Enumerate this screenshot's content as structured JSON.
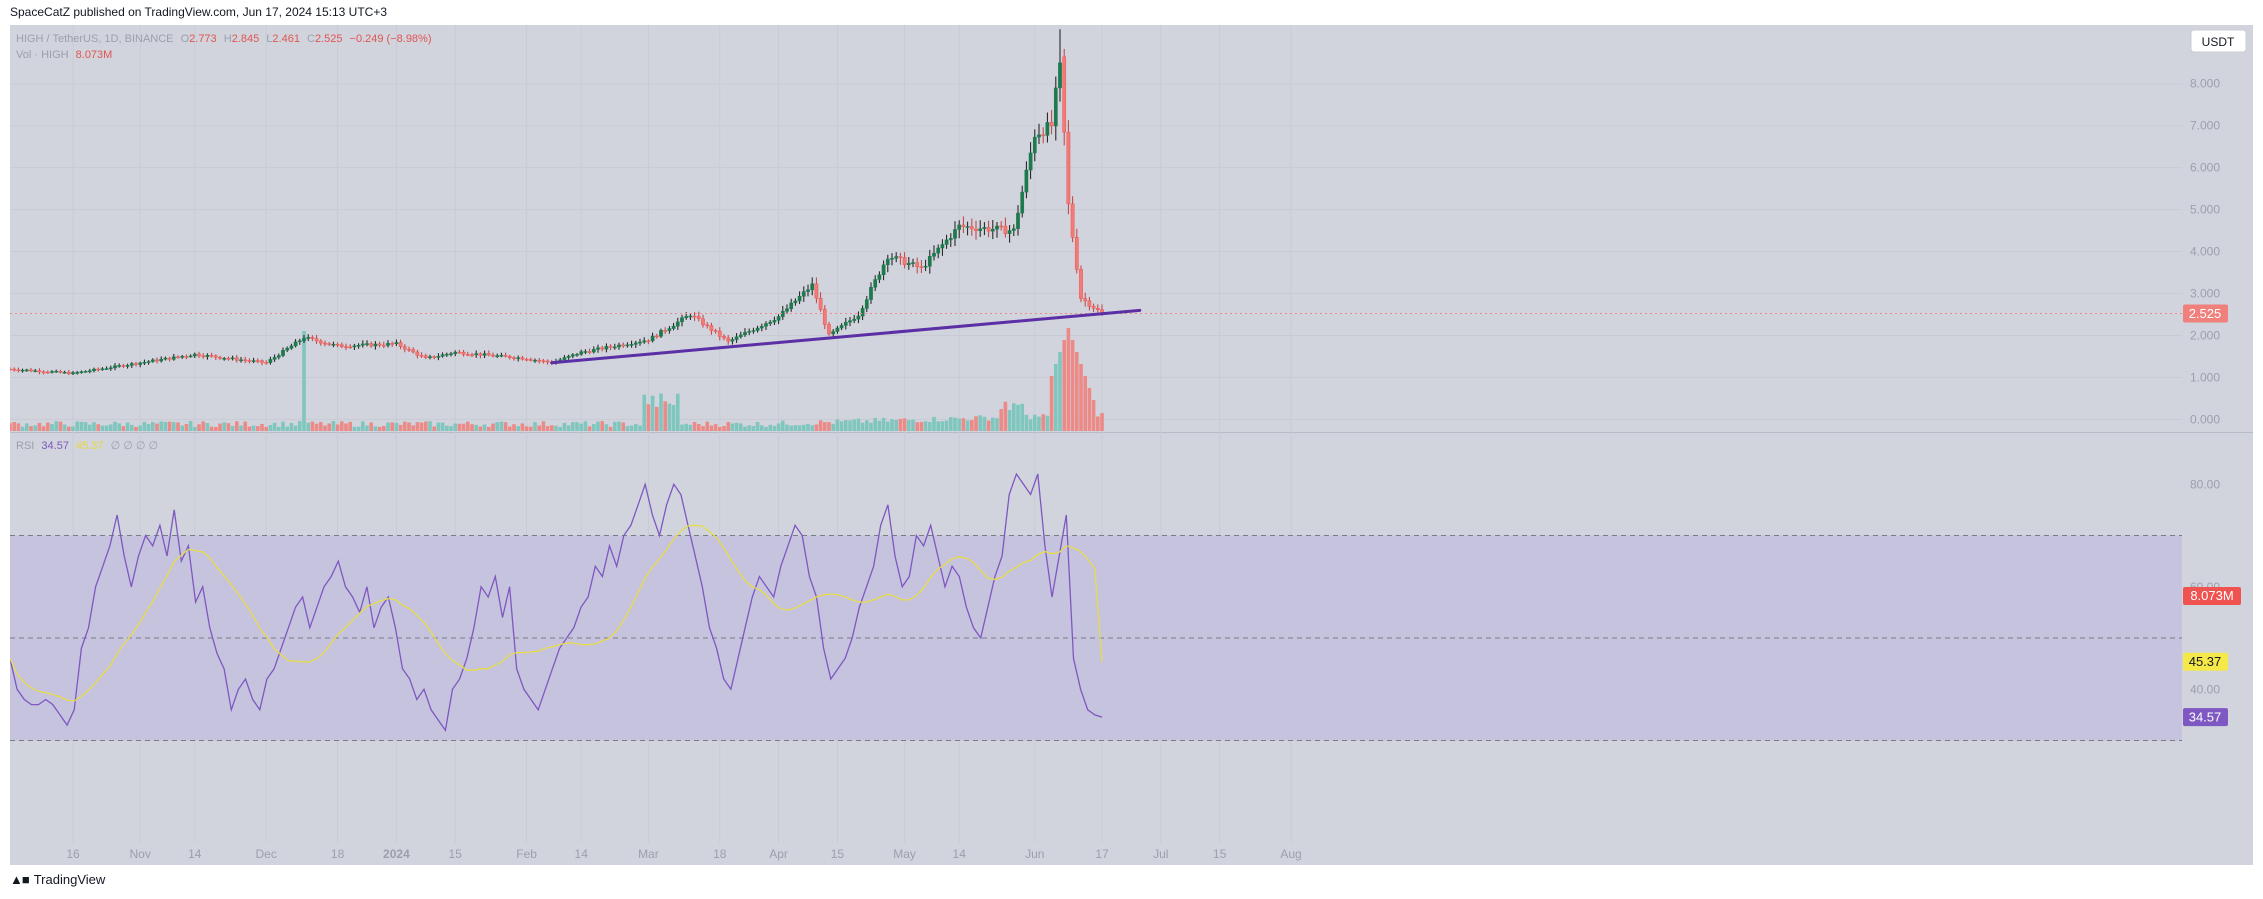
{
  "header": {
    "published": "SpaceCatZ published on TradingView.com, Jun 17, 2024 15:13 UTC+3"
  },
  "legend": {
    "symbol": "HIGH / TetherUS, 1D, BINANCE",
    "o_label": "O",
    "o_value": "2.773",
    "h_label": "H",
    "h_value": "2.845",
    "l_label": "L",
    "l_value": "2.461",
    "c_label": "C",
    "c_value": "2.525",
    "change": "−0.249 (−8.98%)",
    "vol_label": "Vol · HIGH",
    "vol_value": "8.073M"
  },
  "rsi_legend": {
    "label": "RSI",
    "value": "34.57",
    "ma_value": "45.37",
    "placeholders": "∅ ∅ ∅ ∅"
  },
  "currency_button": "USDT",
  "brand": "TradingView",
  "colors": {
    "up": "#26a69a",
    "down": "#ef5350",
    "trendline": "#5b2fa5",
    "rsi": "#7e57c2",
    "rsi_ma": "#f5e94a",
    "price_tag": "#f0807b",
    "volume_tag": "#ef5350",
    "rsi_tag": "#7e57c2",
    "rsi_ma_tag": "#f5e94a"
  },
  "chart_data": [
    {
      "type": "candlestick",
      "title": "",
      "price_axis_ticks": [
        "8.000",
        "7.000",
        "6.000",
        "5.000",
        "4.000",
        "3.000",
        "2.000",
        "1.000",
        "0.000"
      ],
      "ylim": [
        -0.3,
        9.4
      ],
      "last_price": "2.525",
      "time_axis_labels": [
        "16",
        "Nov",
        "14",
        "Dec",
        "18",
        "2024",
        "15",
        "Feb",
        "14",
        "Mar",
        "18",
        "Apr",
        "15",
        "May",
        "14",
        "Jun",
        "17",
        "Jul",
        "15",
        "Aug"
      ],
      "key_points": [
        {
          "date": "2023-10-01",
          "close": 1.2
        },
        {
          "date": "2023-10-16",
          "close": 1.1
        },
        {
          "date": "2023-11-01",
          "close": 1.35
        },
        {
          "date": "2023-11-14",
          "close": 1.55
        },
        {
          "date": "2023-12-01",
          "close": 1.35
        },
        {
          "date": "2023-12-10",
          "close": 1.95
        },
        {
          "date": "2023-12-18",
          "close": 1.75
        },
        {
          "date": "2024-01-01",
          "close": 1.8
        },
        {
          "date": "2024-01-08",
          "close": 1.45
        },
        {
          "date": "2024-01-15",
          "close": 1.6
        },
        {
          "date": "2024-02-01",
          "close": 1.45
        },
        {
          "date": "2024-02-07",
          "close": 1.35
        },
        {
          "date": "2024-02-14",
          "close": 1.6
        },
        {
          "date": "2024-03-01",
          "close": 1.9
        },
        {
          "date": "2024-03-11",
          "close": 2.5
        },
        {
          "date": "2024-03-20",
          "close": 1.85
        },
        {
          "date": "2024-04-01",
          "close": 2.45
        },
        {
          "date": "2024-04-09",
          "close": 3.2
        },
        {
          "date": "2024-04-13",
          "close": 2.0
        },
        {
          "date": "2024-04-20",
          "close": 2.5
        },
        {
          "date": "2024-04-27",
          "close": 3.9
        },
        {
          "date": "2024-05-05",
          "close": 3.6
        },
        {
          "date": "2024-05-14",
          "close": 4.6
        },
        {
          "date": "2024-05-27",
          "close": 4.5
        },
        {
          "date": "2024-06-01",
          "close": 6.8
        },
        {
          "date": "2024-06-05",
          "close": 7.0
        },
        {
          "date": "2024-06-07",
          "close": 8.5
        },
        {
          "date": "2024-06-09",
          "close": 5.1
        },
        {
          "date": "2024-06-12",
          "close": 2.9
        },
        {
          "date": "2024-06-17",
          "close": 2.525
        }
      ],
      "trendline": [
        {
          "date": "2024-02-07",
          "value": 1.35
        },
        {
          "date": "2024-06-26",
          "value": 2.6
        }
      ]
    },
    {
      "type": "bar",
      "title": "",
      "series": [
        {
          "name": "Vol · HIGH",
          "last": "8.073M"
        }
      ],
      "spikes": [
        {
          "date": "2023-12-10",
          "relative": 1.0
        },
        {
          "date": "2024-06-09",
          "relative": 1.03
        }
      ]
    },
    {
      "type": "line",
      "title": "",
      "rsi_axis_ticks": [
        "80.00",
        "60.00",
        "40.00"
      ],
      "ylim": [
        10,
        90
      ],
      "bands": [
        30,
        50,
        70
      ],
      "series": [
        {
          "name": "RSI",
          "last": 34.57
        },
        {
          "name": "RSI MA",
          "last": 45.37
        }
      ],
      "rsi_values": [
        46,
        40,
        38,
        37,
        37,
        38,
        37,
        35,
        33,
        36,
        48,
        52,
        60,
        64,
        68,
        74,
        66,
        60,
        66,
        70,
        68,
        72,
        66,
        75,
        65,
        68,
        57,
        60,
        52,
        47,
        44,
        36,
        40,
        42,
        38,
        36,
        42,
        44,
        48,
        52,
        56,
        58,
        52,
        56,
        60,
        62,
        65,
        60,
        58,
        55,
        60,
        52,
        56,
        58,
        52,
        44,
        42,
        38,
        40,
        36,
        34,
        32,
        40,
        42,
        46,
        52,
        60,
        58,
        62,
        54,
        60,
        44,
        40,
        38,
        36,
        40,
        44,
        48,
        50,
        52,
        56,
        58,
        64,
        62,
        68,
        64,
        70,
        72,
        76,
        80,
        74,
        70,
        76,
        80,
        78,
        72,
        66,
        60,
        52,
        48,
        42,
        40,
        46,
        52,
        58,
        62,
        60,
        58,
        64,
        68,
        72,
        70,
        62,
        58,
        48,
        42,
        44,
        46,
        50,
        56,
        60,
        64,
        72,
        76,
        66,
        60,
        62,
        70,
        68,
        72,
        66,
        60,
        64,
        62,
        56,
        52,
        50,
        56,
        62,
        66,
        78,
        82,
        80,
        78,
        82,
        68,
        58,
        66,
        74,
        46,
        40,
        36,
        35,
        34.57
      ]
    }
  ]
}
